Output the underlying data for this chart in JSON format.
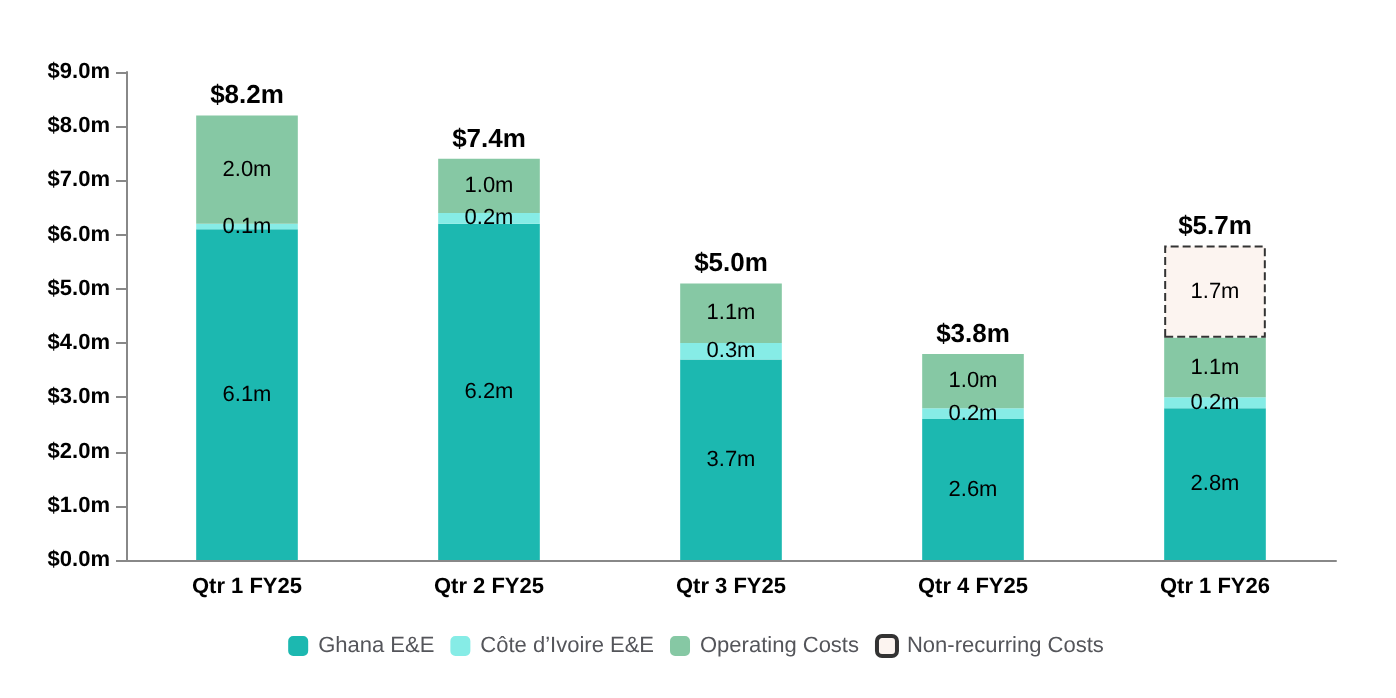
{
  "chart_data": {
    "type": "bar",
    "stacked": true,
    "categories": [
      "Qtr 1 FY25",
      "Qtr 2 FY25",
      "Qtr 3 FY25",
      "Qtr 4 FY25",
      "Qtr 1 FY26"
    ],
    "series": [
      {
        "name": "Ghana E&E",
        "color": "#1cb8b0",
        "values": [
          6.1,
          6.2,
          3.7,
          2.6,
          2.8
        ],
        "value_labels": [
          "6.1m",
          "6.2m",
          "3.7m",
          "2.6m",
          "2.8m"
        ]
      },
      {
        "name": "Côte d’Ivoire E&E",
        "color": "#86ece6",
        "values": [
          0.1,
          0.2,
          0.3,
          0.2,
          0.2
        ],
        "value_labels": [
          "0.1m",
          "0.2m",
          "0.3m",
          "0.2m",
          "0.2m"
        ]
      },
      {
        "name": "Operating Costs",
        "color": "#86c8a4",
        "values": [
          2.0,
          1.0,
          1.1,
          1.0,
          1.1
        ],
        "value_labels": [
          "2.0m",
          "1.0m",
          "1.1m",
          "1.0m",
          "1.1m"
        ]
      },
      {
        "name": "Non-recurring Costs",
        "color": "#fcf4f0",
        "line_style": "dashed",
        "values": [
          null,
          null,
          null,
          null,
          1.7
        ],
        "value_labels": [
          null,
          null,
          null,
          null,
          "1.7m"
        ]
      }
    ],
    "totals": [
      "$8.2m",
      "$7.4m",
      "$5.0m",
      "$3.8m",
      "$5.7m"
    ],
    "ylim": [
      0,
      9
    ],
    "yticks": [
      {
        "value": 0,
        "label": "$0.0m"
      },
      {
        "value": 1,
        "label": "$1.0m"
      },
      {
        "value": 2,
        "label": "$2.0m"
      },
      {
        "value": 3,
        "label": "$3.0m"
      },
      {
        "value": 4,
        "label": "$4.0m"
      },
      {
        "value": 5,
        "label": "$5.0m"
      },
      {
        "value": 6,
        "label": "$6.0m"
      },
      {
        "value": 7,
        "label": "$7.0m"
      },
      {
        "value": 8,
        "label": "$8.0m"
      },
      {
        "value": 9,
        "label": "$9.0m"
      }
    ],
    "grid": false,
    "legend": "bottom"
  }
}
